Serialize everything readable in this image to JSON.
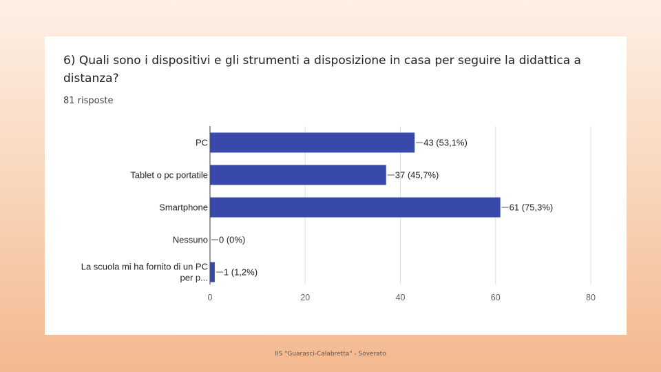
{
  "question": "6) Quali sono i dispositivi e gli strumenti a disposizione in casa per seguire la didattica a distanza?",
  "responses_label": "81 risposte",
  "footer": "IIS \"Guarasci-Calabretta\" - Soverato",
  "colors": {
    "bar": "#3949ab",
    "grid": "#e0e0e0",
    "axis": "#333333"
  },
  "chart_data": {
    "type": "bar",
    "orientation": "horizontal",
    "title": "6) Quali sono i dispositivi e gli strumenti a disposizione in casa per seguire la didattica a distanza?",
    "categories": [
      [
        "PC"
      ],
      [
        "Tablet o pc portatile"
      ],
      [
        "Smartphone"
      ],
      [
        "Nessuno"
      ],
      [
        "La scuola mi ha fornito di un PC",
        "per p..."
      ]
    ],
    "values": [
      43,
      37,
      61,
      0,
      1
    ],
    "data_labels": [
      "43 (53,1%)",
      "37 (45,7%)",
      "61 (75,3%)",
      "0 (0%)",
      "1 (1,2%)"
    ],
    "xlim": [
      0,
      80
    ],
    "xticks": [
      0,
      20,
      40,
      60,
      80
    ],
    "grid": true,
    "legend": "none"
  }
}
